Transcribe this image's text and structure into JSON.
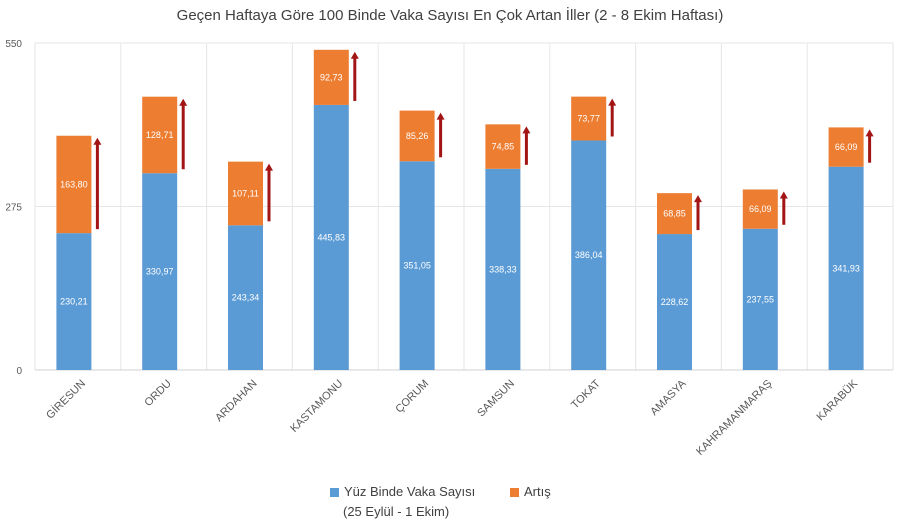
{
  "chart_data": {
    "type": "bar",
    "stacked": true,
    "title": "Geçen Haftaya Göre 100 Binde Vaka Sayısı En Çok Artan İller (2 - 8 Ekim Haftası)",
    "categories": [
      "GİRESUN",
      "ORDU",
      "ARDAHAN",
      "KASTAMONU",
      "ÇORUM",
      "SAMSUN",
      "TOKAT",
      "AMASYA",
      "KAHRAMANMARAŞ",
      "KARABÜK"
    ],
    "series": [
      {
        "name": "Yüz Binde Vaka Sayısı (25 Eylül - 1 Ekim)",
        "color": "#5b9bd5",
        "values": [
          230.21,
          330.97,
          243.34,
          445.83,
          351.05,
          338.33,
          386.04,
          228.62,
          237.55,
          341.93
        ],
        "labels": [
          "230,21",
          "330,97",
          "243,34",
          "445,83",
          "351,05",
          "338,33",
          "386,04",
          "228,62",
          "237,55",
          "341,93"
        ]
      },
      {
        "name": "Artış",
        "color": "#ed7d31",
        "values": [
          163.8,
          128.71,
          107.11,
          92.73,
          85.26,
          74.85,
          73.77,
          68.85,
          66.09,
          66.09
        ],
        "labels": [
          "163,80",
          "128,71",
          "107,11",
          "92,73",
          "85,26",
          "74,85",
          "73,77",
          "68,85",
          "66,09",
          "66,09"
        ]
      }
    ],
    "yticks": [
      "0",
      "275",
      "550"
    ],
    "ytick_values": [
      0,
      275,
      550
    ],
    "ylim": [
      0,
      550
    ],
    "grid": "vertical",
    "legend_position": "bottom",
    "arrow_color": "#a31515",
    "grid_color": "#e6e6e6",
    "text_color": "#595959"
  },
  "legend": {
    "item1_line1": "Yüz Binde Vaka Sayısı",
    "item1_line2": "(25 Eylül - 1 Ekim)",
    "item2": "Artış"
  }
}
